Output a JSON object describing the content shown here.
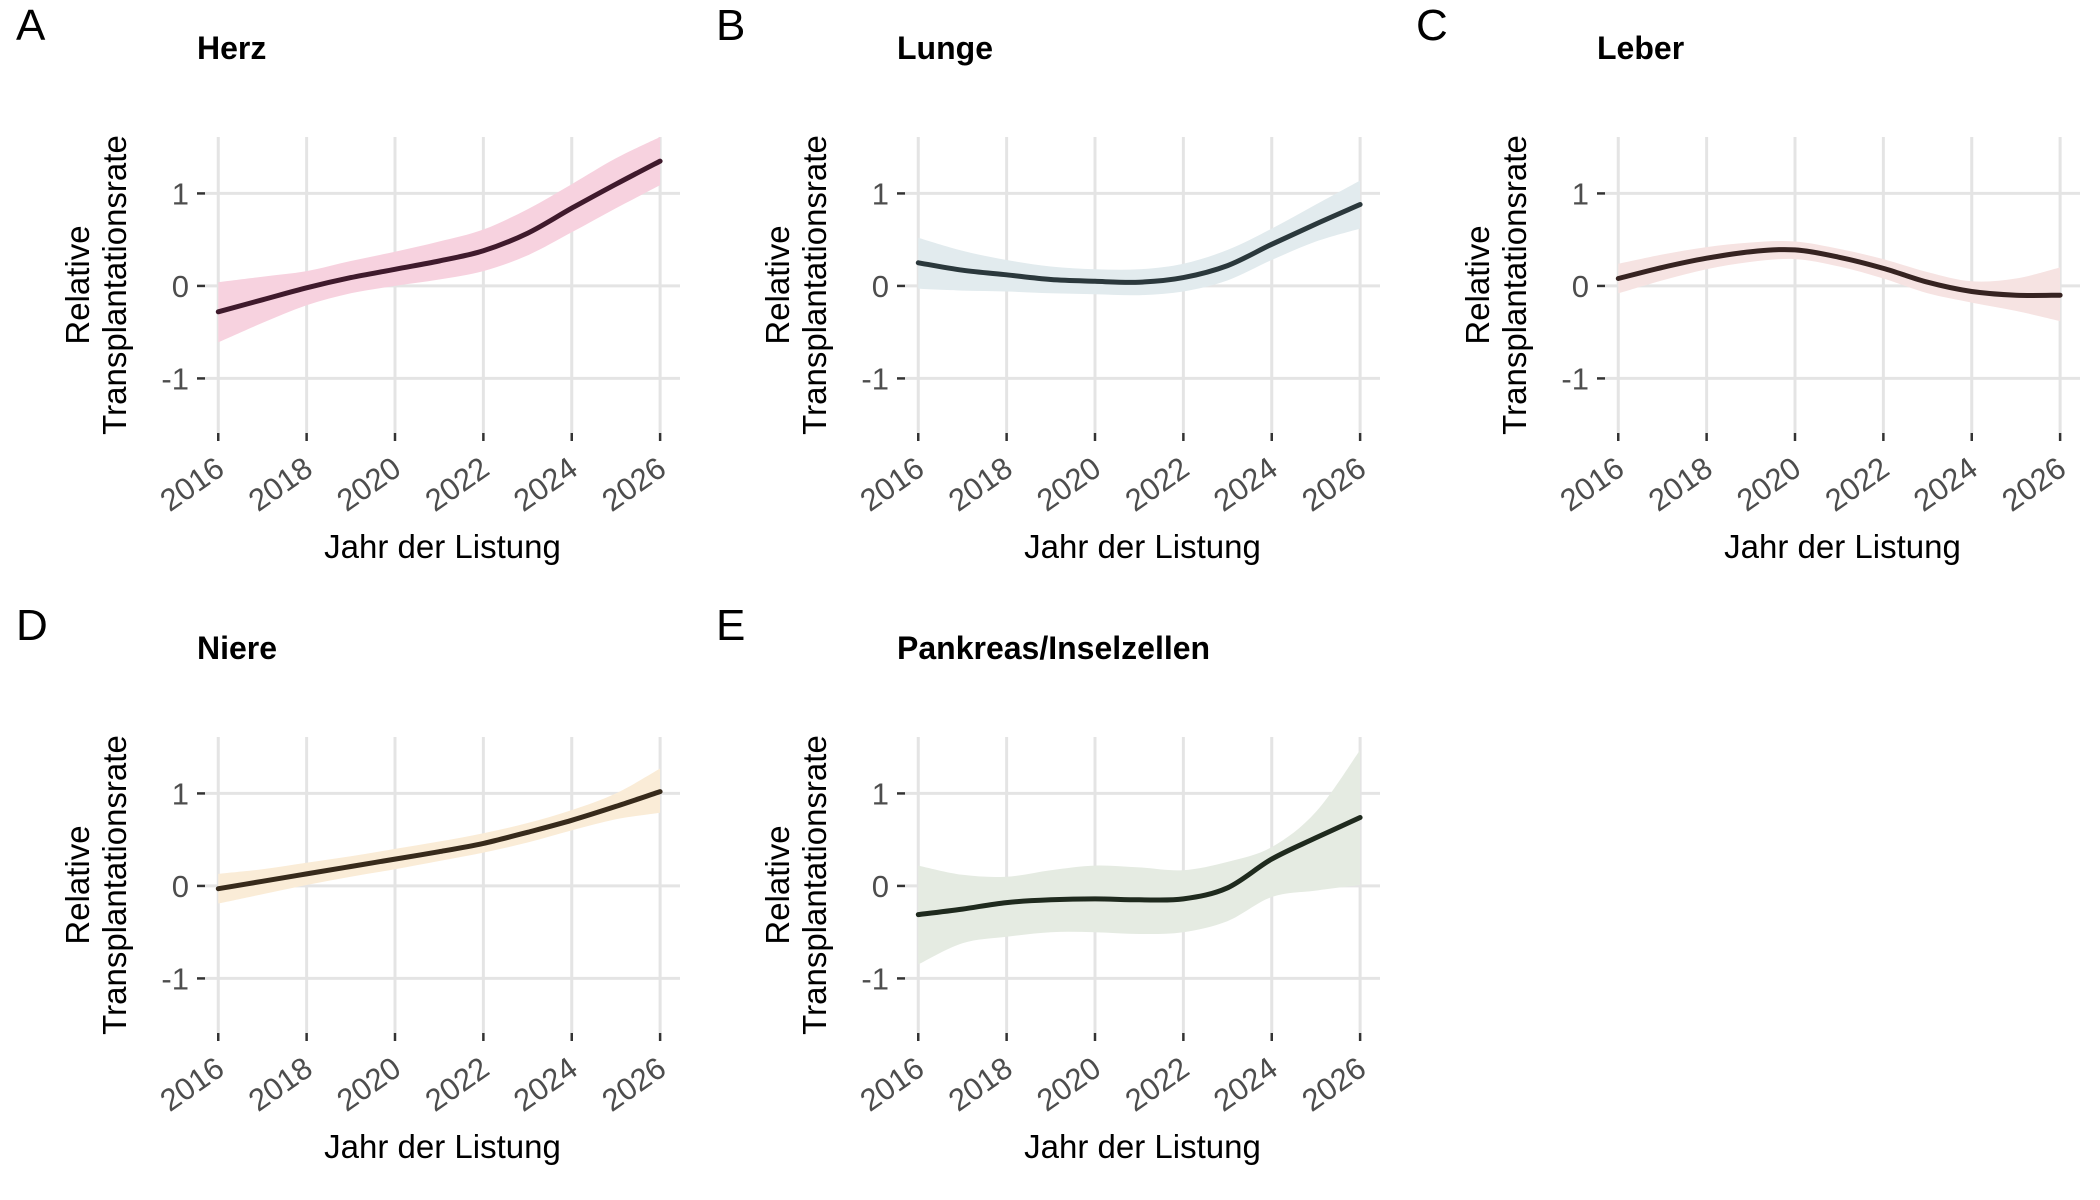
{
  "styles": {
    "background": "#ffffff",
    "grid_color": "#e4e4e4",
    "tick_mark_color": "#333333",
    "tick_text_color": "#4d4d4d",
    "text_color": "#000000"
  },
  "chart_data": [
    {
      "type": "line",
      "letter": "A",
      "title": "Herz",
      "xlabel": "Jahr der Listung",
      "ylabel": "Relative Transplantationsrate",
      "ylabel_lines": [
        "Relative",
        "Transplantationsrate"
      ],
      "x": [
        2016,
        2017,
        2018,
        2019,
        2020,
        2021,
        2022,
        2023,
        2024,
        2025,
        2026
      ],
      "line": [
        -0.28,
        -0.15,
        -0.02,
        0.09,
        0.18,
        0.27,
        0.38,
        0.57,
        0.84,
        1.1,
        1.35
      ],
      "ci_upper": [
        0.04,
        0.1,
        0.16,
        0.27,
        0.37,
        0.48,
        0.61,
        0.83,
        1.1,
        1.38,
        1.61
      ],
      "ci_lower": [
        -0.61,
        -0.4,
        -0.21,
        -0.08,
        0.0,
        0.07,
        0.16,
        0.33,
        0.58,
        0.84,
        1.09
      ],
      "band_color": "#f7d2df",
      "line_color": "#3f1a2c",
      "xticks": [
        2016,
        2018,
        2020,
        2022,
        2024,
        2026
      ],
      "yticks": [
        1,
        0,
        -1
      ],
      "xlim": [
        2015.7,
        2026.45
      ],
      "ylim": [
        -1.59,
        1.61
      ],
      "grid": true,
      "legend": "none"
    },
    {
      "type": "line",
      "letter": "B",
      "title": "Lunge",
      "xlabel": "Jahr der Listung",
      "ylabel": "Relative Transplantationsrate",
      "ylabel_lines": [
        "Relative",
        "Transplantationsrate"
      ],
      "x": [
        2016,
        2017,
        2018,
        2019,
        2020,
        2021,
        2022,
        2023,
        2024,
        2025,
        2026
      ],
      "line": [
        0.25,
        0.17,
        0.12,
        0.07,
        0.05,
        0.04,
        0.09,
        0.22,
        0.45,
        0.67,
        0.88
      ],
      "ci_upper": [
        0.52,
        0.38,
        0.28,
        0.21,
        0.18,
        0.18,
        0.24,
        0.39,
        0.62,
        0.88,
        1.14
      ],
      "ci_lower": [
        -0.03,
        -0.05,
        -0.06,
        -0.08,
        -0.09,
        -0.1,
        -0.06,
        0.06,
        0.28,
        0.48,
        0.62
      ],
      "band_color": "#e2ebee",
      "line_color": "#2b383c",
      "xticks": [
        2016,
        2018,
        2020,
        2022,
        2024,
        2026
      ],
      "yticks": [
        1,
        0,
        -1
      ],
      "xlim": [
        2015.7,
        2026.45
      ],
      "ylim": [
        -1.59,
        1.61
      ],
      "grid": true,
      "legend": "none"
    },
    {
      "type": "line",
      "letter": "C",
      "title": "Leber",
      "xlabel": "Jahr der Listung",
      "ylabel": "Relative Transplantationsrate",
      "ylabel_lines": [
        "Relative",
        "Transplantationsrate"
      ],
      "x": [
        2016,
        2017,
        2018,
        2019,
        2020,
        2021,
        2022,
        2023,
        2024,
        2025,
        2026
      ],
      "line": [
        0.08,
        0.2,
        0.3,
        0.37,
        0.39,
        0.31,
        0.19,
        0.04,
        -0.06,
        -0.1,
        -0.1
      ],
      "ci_upper": [
        0.24,
        0.34,
        0.42,
        0.47,
        0.48,
        0.4,
        0.29,
        0.15,
        0.05,
        0.08,
        0.2
      ],
      "ci_lower": [
        -0.08,
        0.06,
        0.18,
        0.26,
        0.29,
        0.21,
        0.08,
        -0.08,
        -0.18,
        -0.27,
        -0.38
      ],
      "band_color": "#f6e3e2",
      "line_color": "#362321",
      "xticks": [
        2016,
        2018,
        2020,
        2022,
        2024,
        2026
      ],
      "yticks": [
        1,
        0,
        -1
      ],
      "xlim": [
        2015.7,
        2026.45
      ],
      "ylim": [
        -1.59,
        1.61
      ],
      "grid": true,
      "legend": "none"
    },
    {
      "type": "line",
      "letter": "D",
      "title": "Niere",
      "xlabel": "Jahr der Listung",
      "ylabel": "Relative Transplantationsrate",
      "ylabel_lines": [
        "Relative",
        "Transplantationsrate"
      ],
      "x": [
        2016,
        2017,
        2018,
        2019,
        2020,
        2021,
        2022,
        2023,
        2024,
        2025,
        2026
      ],
      "line": [
        -0.03,
        0.05,
        0.13,
        0.21,
        0.29,
        0.37,
        0.46,
        0.58,
        0.71,
        0.86,
        1.02
      ],
      "ci_upper": [
        0.13,
        0.18,
        0.25,
        0.32,
        0.4,
        0.48,
        0.57,
        0.68,
        0.82,
        1.0,
        1.27
      ],
      "ci_lower": [
        -0.19,
        -0.09,
        0.01,
        0.1,
        0.18,
        0.27,
        0.36,
        0.47,
        0.6,
        0.72,
        0.79
      ],
      "band_color": "#faecd7",
      "line_color": "#372a1b",
      "xticks": [
        2016,
        2018,
        2020,
        2022,
        2024,
        2026
      ],
      "yticks": [
        1,
        0,
        -1
      ],
      "xlim": [
        2015.7,
        2026.45
      ],
      "ylim": [
        -1.59,
        1.61
      ],
      "grid": true,
      "legend": "none"
    },
    {
      "type": "line",
      "letter": "E",
      "title": "Pankreas/Inselzellen",
      "xlabel": "Jahr der Listung",
      "ylabel": "Relative Transplantationsrate",
      "ylabel_lines": [
        "Relative",
        "Transplantationsrate"
      ],
      "x": [
        2016,
        2017,
        2018,
        2019,
        2020,
        2021,
        2022,
        2023,
        2024,
        2025,
        2026
      ],
      "line": [
        -0.31,
        -0.25,
        -0.18,
        -0.15,
        -0.14,
        -0.15,
        -0.14,
        -0.02,
        0.29,
        0.52,
        0.74
      ],
      "ci_upper": [
        0.22,
        0.12,
        0.1,
        0.17,
        0.22,
        0.2,
        0.17,
        0.26,
        0.42,
        0.8,
        1.47
      ],
      "ci_lower": [
        -0.85,
        -0.62,
        -0.55,
        -0.5,
        -0.5,
        -0.52,
        -0.5,
        -0.38,
        -0.12,
        -0.05,
        0.01
      ],
      "band_color": "#e5ebe2",
      "line_color": "#1f2a1e",
      "xticks": [
        2016,
        2018,
        2020,
        2022,
        2024,
        2026
      ],
      "yticks": [
        1,
        0,
        -1
      ],
      "xlim": [
        2015.7,
        2026.45
      ],
      "ylim": [
        -1.59,
        1.61
      ],
      "grid": true,
      "legend": "none"
    }
  ]
}
